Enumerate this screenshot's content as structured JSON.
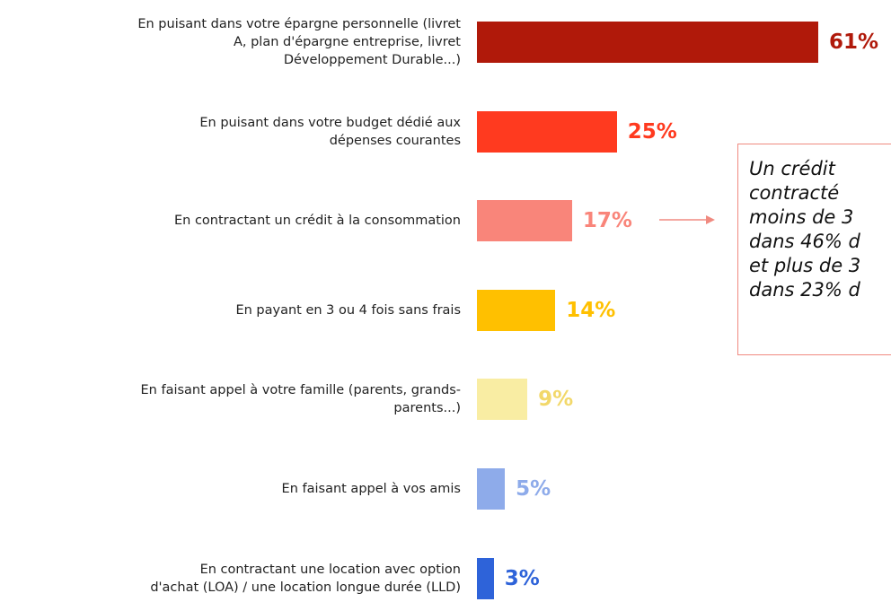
{
  "chart_data": {
    "type": "barh",
    "categories": [
      "En puisant dans votre épargne personnelle (livret\nA, plan d'épargne entreprise, livret\nDéveloppement Durable...)",
      "En puisant dans votre budget dédié aux\ndépenses courantes",
      "En contractant un crédit à la consommation",
      "En payant en 3 ou 4 fois sans frais",
      "En faisant appel à votre famille (parents, grands-\nparents...)",
      "En faisant appel à vos amis",
      "En contractant une location avec option\nd'achat (LOA) / une location longue durée (LLD)"
    ],
    "values": [
      61,
      25,
      17,
      14,
      9,
      5,
      3
    ],
    "value_labels": [
      "61%",
      "25%",
      "17%",
      "14%",
      "9%",
      "5%",
      "3%"
    ],
    "colors": [
      "#b0190a",
      "#ff3a1f",
      "#f9857a",
      "#ffc000",
      "#f9eda3",
      "#8eabea",
      "#2e63d9"
    ],
    "annotation": "Un crédit\ncontracté\nmoins de 3\ndans 46% d\net plus de 3\ndans 23% d"
  }
}
